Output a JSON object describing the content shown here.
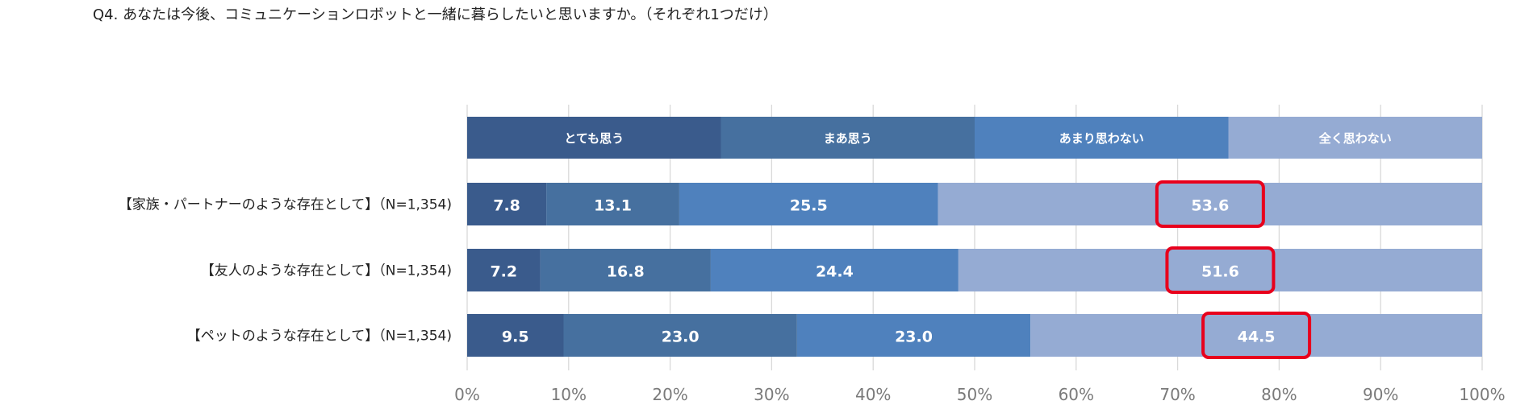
{
  "question": "Q4. あなたは今後、コミュニケーションロボットと一緒に暮らしたいと思いますか。（それぞれ1つだけ）",
  "chart_data": {
    "type": "bar",
    "stacked": true,
    "orientation": "horizontal",
    "percent": true,
    "categories": [
      "【家族・パートナーのような存在として】（N=1,354)",
      "【友人のような存在として】（N=1,354)",
      "【ペットのような存在として】（N=1,354)"
    ],
    "series": [
      {
        "name": "とても思う",
        "color": "#3a5b8c",
        "values": [
          7.8,
          7.2,
          9.5
        ]
      },
      {
        "name": "まあ思う",
        "color": "#46709f",
        "values": [
          13.1,
          16.8,
          23.0
        ]
      },
      {
        "name": "あまり思わない",
        "color": "#4f81bd",
        "values": [
          25.5,
          24.4,
          23.0
        ]
      },
      {
        "name": "全く思わない",
        "color": "#95abd3",
        "values": [
          53.6,
          51.6,
          44.5
        ]
      }
    ],
    "xlim": [
      0,
      100
    ],
    "xticks": [
      "0%",
      "10%",
      "20%",
      "30%",
      "40%",
      "50%",
      "60%",
      "70%",
      "80%",
      "90%",
      "100%"
    ],
    "legend": "top",
    "grid": true,
    "highlight_series": "全く思わない",
    "highlight_color": "#e8001c"
  }
}
